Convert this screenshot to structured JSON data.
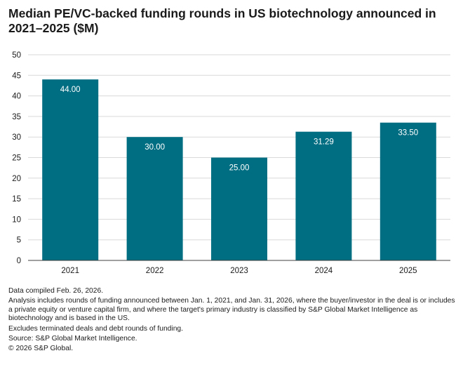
{
  "title": "Median PE/VC-backed funding rounds in US biotechnology announced in 2021–2025 ($M)",
  "chart_data": {
    "type": "bar",
    "title": "Median PE/VC-backed funding rounds in US biotechnology announced in 2021–2025 ($M)",
    "categories": [
      "2021",
      "2022",
      "2023",
      "2024",
      "2025"
    ],
    "values": [
      44.0,
      30.0,
      25.0,
      31.29,
      33.5
    ],
    "data_labels": [
      "44.00",
      "30.00",
      "25.00",
      "31.29",
      "33.50"
    ],
    "y_ticks": [
      0,
      5,
      10,
      15,
      20,
      25,
      30,
      35,
      40,
      45,
      50
    ],
    "ylim": [
      0,
      50
    ],
    "xlabel": "",
    "ylabel": "",
    "grid": true,
    "legend": "none",
    "bar_color": "#006E82",
    "grid_color": "#d9d9d9"
  },
  "notes": {
    "compiled": "Data compiled Feb. 26, 2026.",
    "analysis": "Analysis includes rounds of funding announced between Jan. 1, 2021, and Jan. 31, 2026, where the buyer/investor in the deal is or includes a private equity or venture capital firm, and where the target's primary industry is classified by S&P Global Market Intelligence as biotechnology and is based in the US.",
    "excludes": "Excludes terminated deals and debt rounds of funding.",
    "source": "Source: S&P Global Market Intelligence.",
    "copyright": "© 2026 S&P Global."
  }
}
